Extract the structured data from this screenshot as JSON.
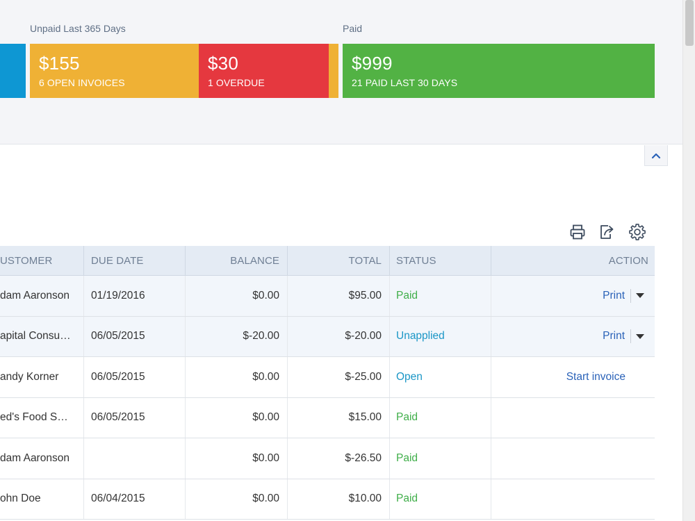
{
  "summary": {
    "unpaid_label": "Unpaid Last 365 Days",
    "paid_label": "Paid",
    "open": {
      "amount": "$155",
      "caption": "6 OPEN INVOICES",
      "color": "#efb135"
    },
    "overdue": {
      "amount": "$30",
      "caption": "1 OVERDUE",
      "color": "#e5383f"
    },
    "paid": {
      "amount": "$999",
      "caption": "21 PAID LAST 30 DAYS",
      "color": "#52b244"
    },
    "estimate_color": "#0e97d3"
  },
  "table": {
    "headers": {
      "customer": "USTOMER",
      "due_date": "DUE DATE",
      "balance": "BALANCE",
      "total": "TOTAL",
      "status": "STATUS",
      "action": "ACTION"
    },
    "rows": [
      {
        "customer": "dam Aaronson",
        "due_date": "01/19/2016",
        "balance": "$0.00",
        "total": "$95.00",
        "status": "Paid",
        "action": "Print"
      },
      {
        "customer": "apital Consu…",
        "due_date": "06/05/2015",
        "balance": "$-20.00",
        "total": "$-20.00",
        "status": "Unapplied",
        "action": "Print"
      },
      {
        "customer": "andy Korner",
        "due_date": "06/05/2015",
        "balance": "$0.00",
        "total": "$-25.00",
        "status": "Open",
        "action": "Start invoice"
      },
      {
        "customer": "ed's Food S…",
        "due_date": "06/05/2015",
        "balance": "$0.00",
        "total": "$15.00",
        "status": "Paid",
        "action": ""
      },
      {
        "customer": "dam Aaronson",
        "due_date": "",
        "balance": "$0.00",
        "total": "$-26.50",
        "status": "Paid",
        "action": ""
      },
      {
        "customer": "ohn Doe",
        "due_date": "06/04/2015",
        "balance": "$0.00",
        "total": "$10.00",
        "status": "Paid",
        "action": ""
      }
    ]
  },
  "colors": {
    "status_paid": "#3fae49",
    "status_info": "#1a96c6",
    "link": "#2a62b8"
  }
}
